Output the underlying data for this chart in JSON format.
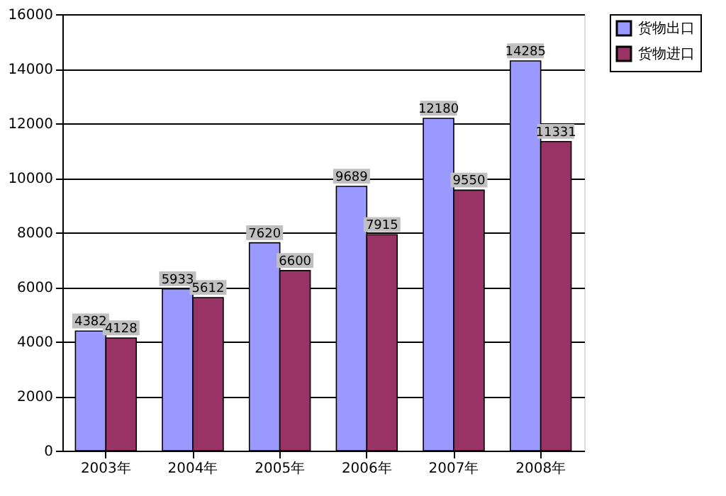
{
  "chart_data": {
    "type": "bar",
    "categories": [
      "2003年",
      "2004年",
      "2005年",
      "2006年",
      "2007年",
      "2008年"
    ],
    "series": [
      {
        "name": "货物出口",
        "color": "#9999ff",
        "values": [
          4382,
          5933,
          7620,
          9689,
          12180,
          14285
        ]
      },
      {
        "name": "货物进口",
        "color": "#993366",
        "values": [
          4128,
          5612,
          6600,
          7915,
          9550,
          11331
        ]
      }
    ],
    "ylim": [
      0,
      16000
    ],
    "yticks": [
      0,
      2000,
      4000,
      6000,
      8000,
      10000,
      12000,
      14000,
      16000
    ],
    "grid": "y",
    "legend": "right",
    "data_labels": true
  }
}
